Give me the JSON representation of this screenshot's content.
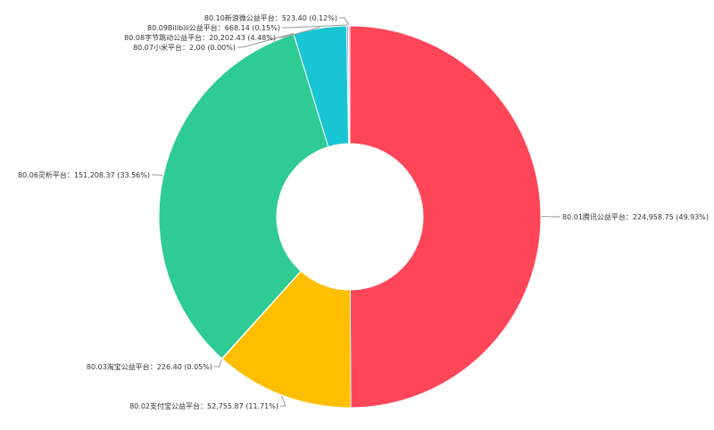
{
  "chart_data": {
    "type": "pie",
    "title": "",
    "legend": "none",
    "series": [
      {
        "categories": [
          "80.01腾讯公益平台",
          "80.02支付宝公益平台",
          "80.03淘宝公益平台",
          "80.06灵析平台",
          "80.07小米平台",
          "80.08字节跳动公益平台",
          "80.09Bilibili公益平台",
          "80.10新浪微公益平台"
        ],
        "values": [
          224958.75,
          52755.87,
          226.4,
          151208.37,
          2.0,
          20202.43,
          668.14,
          523.4
        ],
        "percents": [
          49.93,
          11.71,
          0.05,
          33.56,
          0.0,
          4.48,
          0.15,
          0.12
        ],
        "labels": [
          "80.01腾讯公益平台：224,958.75 (49.93%)",
          "80.02支付宝公益平台：52,755.87 (11.71%)",
          "80.03淘宝公益平台：226.40 (0.05%)",
          "80.06灵析平台：151,208.37 (33.56%)",
          "80.07小米平台：2.00 (0.00%)",
          "80.08字节跳动公益平台：20,202.43 (4.48%)",
          "80.09Bilibili公益平台：668.14 (0.15%)",
          "80.10新浪微公益平台：523.40 (0.12%)"
        ],
        "colors": [
          "#ff4659",
          "#ffbf00",
          "#4f9cf7",
          "#2ecb95",
          "#8a5cf6",
          "#19c5d3",
          "#6f8ff5",
          "#ff7f9a"
        ]
      }
    ]
  }
}
